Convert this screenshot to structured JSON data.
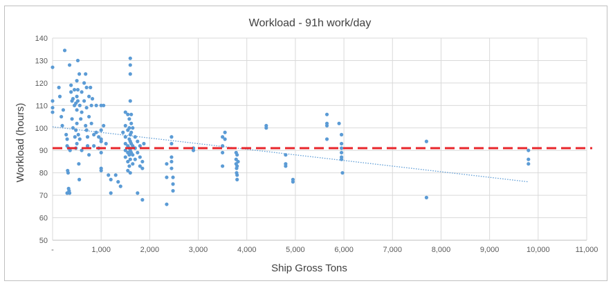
{
  "chart_data": {
    "type": "scatter",
    "title": "Workload - 91h work/day",
    "xlabel": "Ship Gross Tons",
    "ylabel": "Workload (hours)",
    "xlim": [
      0,
      11000
    ],
    "ylim": [
      50,
      140
    ],
    "x_ticks": [
      "-",
      "1,000",
      "2,000",
      "3,000",
      "4,000",
      "5,000",
      "6,000",
      "7,000",
      "8,000",
      "9,000",
      "10,000",
      "11,000"
    ],
    "y_ticks": [
      "50",
      "60",
      "70",
      "80",
      "90",
      "100",
      "110",
      "120",
      "130",
      "140"
    ],
    "grid": true,
    "legend": "none",
    "reference_line": {
      "y": 91,
      "color": "#e8262b",
      "style": "dashed"
    },
    "trendline": {
      "x": [
        0,
        9800
      ],
      "y": [
        100.5,
        76
      ],
      "color": "#5b9bd5",
      "style": "dotted"
    },
    "point_color": "#5b9bd5",
    "points": [
      [
        0,
        127
      ],
      [
        0,
        112
      ],
      [
        0,
        109
      ],
      [
        0,
        107
      ],
      [
        130,
        118
      ],
      [
        150,
        114
      ],
      [
        180,
        105
      ],
      [
        200,
        101
      ],
      [
        220,
        108
      ],
      [
        250,
        134.5
      ],
      [
        280,
        97
      ],
      [
        300,
        95
      ],
      [
        300,
        92
      ],
      [
        310,
        81
      ],
      [
        320,
        80
      ],
      [
        330,
        73
      ],
      [
        340,
        72
      ],
      [
        350,
        71
      ],
      [
        300,
        71
      ],
      [
        330,
        91
      ],
      [
        360,
        90
      ],
      [
        350,
        128
      ],
      [
        380,
        119
      ],
      [
        380,
        116
      ],
      [
        400,
        112
      ],
      [
        400,
        104
      ],
      [
        420,
        113
      ],
      [
        420,
        100
      ],
      [
        450,
        117
      ],
      [
        450,
        110
      ],
      [
        460,
        96
      ],
      [
        480,
        111
      ],
      [
        480,
        99
      ],
      [
        480,
        91
      ],
      [
        500,
        121
      ],
      [
        500,
        114
      ],
      [
        500,
        108
      ],
      [
        500,
        102
      ],
      [
        500,
        93
      ],
      [
        520,
        130
      ],
      [
        520,
        117
      ],
      [
        520,
        112
      ],
      [
        530,
        97
      ],
      [
        540,
        84
      ],
      [
        550,
        77
      ],
      [
        550,
        124
      ],
      [
        560,
        110
      ],
      [
        560,
        95
      ],
      [
        580,
        104
      ],
      [
        600,
        116
      ],
      [
        600,
        107
      ],
      [
        600,
        90
      ],
      [
        650,
        120
      ],
      [
        650,
        112
      ],
      [
        680,
        124
      ],
      [
        680,
        101
      ],
      [
        700,
        118
      ],
      [
        700,
        109
      ],
      [
        700,
        99
      ],
      [
        720,
        96
      ],
      [
        720,
        92
      ],
      [
        750,
        114
      ],
      [
        750,
        105
      ],
      [
        750,
        88
      ],
      [
        780,
        118
      ],
      [
        800,
        110
      ],
      [
        800,
        102
      ],
      [
        820,
        113
      ],
      [
        850,
        97
      ],
      [
        850,
        92
      ],
      [
        900,
        110
      ],
      [
        900,
        98
      ],
      [
        950,
        96
      ],
      [
        950,
        91
      ],
      [
        1000,
        110
      ],
      [
        1000,
        99
      ],
      [
        1000,
        95
      ],
      [
        1000,
        94
      ],
      [
        1000,
        89
      ],
      [
        1000,
        82
      ],
      [
        1000,
        81
      ],
      [
        1050,
        110
      ],
      [
        1050,
        101
      ],
      [
        1100,
        93
      ],
      [
        1150,
        79
      ],
      [
        1200,
        71
      ],
      [
        1200,
        77
      ],
      [
        1300,
        79
      ],
      [
        1350,
        76
      ],
      [
        1400,
        74
      ],
      [
        1450,
        98
      ],
      [
        1500,
        107
      ],
      [
        1500,
        101
      ],
      [
        1500,
        96
      ],
      [
        1500,
        93
      ],
      [
        1500,
        90
      ],
      [
        1500,
        87
      ],
      [
        1550,
        106
      ],
      [
        1550,
        99
      ],
      [
        1550,
        92
      ],
      [
        1550,
        89
      ],
      [
        1550,
        85
      ],
      [
        1550,
        81
      ],
      [
        1580,
        104
      ],
      [
        1580,
        100
      ],
      [
        1580,
        95
      ],
      [
        1580,
        91
      ],
      [
        1580,
        88
      ],
      [
        1580,
        83
      ],
      [
        1600,
        131
      ],
      [
        1600,
        128
      ],
      [
        1600,
        124
      ],
      [
        1600,
        112
      ],
      [
        1600,
        97
      ],
      [
        1600,
        94
      ],
      [
        1600,
        90
      ],
      [
        1600,
        86
      ],
      [
        1620,
        106
      ],
      [
        1620,
        102
      ],
      [
        1620,
        98
      ],
      [
        1620,
        93
      ],
      [
        1620,
        89
      ],
      [
        1650,
        100
      ],
      [
        1650,
        92
      ],
      [
        1650,
        88
      ],
      [
        1650,
        84
      ],
      [
        1700,
        96
      ],
      [
        1700,
        91
      ],
      [
        1700,
        86
      ],
      [
        1750,
        94
      ],
      [
        1750,
        89
      ],
      [
        1800,
        92
      ],
      [
        1800,
        87
      ],
      [
        1800,
        83
      ],
      [
        1850,
        85
      ],
      [
        1850,
        82
      ],
      [
        1880,
        93
      ],
      [
        1850,
        68
      ],
      [
        1750,
        71
      ],
      [
        1600,
        80
      ],
      [
        2350,
        78
      ],
      [
        2350,
        84
      ],
      [
        2350,
        66
      ],
      [
        2450,
        96
      ],
      [
        2450,
        93
      ],
      [
        2450,
        87
      ],
      [
        2450,
        85
      ],
      [
        2450,
        82
      ],
      [
        2480,
        78
      ],
      [
        2480,
        75
      ],
      [
        2480,
        72
      ],
      [
        2900,
        91
      ],
      [
        2900,
        90
      ],
      [
        3500,
        96
      ],
      [
        3500,
        92
      ],
      [
        3500,
        89
      ],
      [
        3500,
        83
      ],
      [
        3550,
        98
      ],
      [
        3550,
        95
      ],
      [
        3780,
        89
      ],
      [
        3780,
        86
      ],
      [
        3780,
        84
      ],
      [
        3790,
        82
      ],
      [
        3790,
        80
      ],
      [
        3800,
        88
      ],
      [
        3800,
        83
      ],
      [
        3800,
        79
      ],
      [
        3800,
        77
      ],
      [
        3820,
        85
      ],
      [
        4400,
        101
      ],
      [
        4400,
        100
      ],
      [
        4800,
        88
      ],
      [
        4800,
        84
      ],
      [
        4800,
        83
      ],
      [
        4950,
        77
      ],
      [
        4950,
        76
      ],
      [
        5650,
        106
      ],
      [
        5650,
        102
      ],
      [
        5650,
        101
      ],
      [
        5650,
        95
      ],
      [
        5900,
        102
      ],
      [
        5950,
        97
      ],
      [
        5950,
        93
      ],
      [
        5950,
        91
      ],
      [
        5950,
        89
      ],
      [
        5950,
        87
      ],
      [
        5950,
        86
      ],
      [
        5970,
        80
      ],
      [
        7700,
        94
      ],
      [
        7700,
        69
      ],
      [
        9800,
        90
      ],
      [
        9800,
        86
      ],
      [
        9800,
        84
      ]
    ]
  }
}
